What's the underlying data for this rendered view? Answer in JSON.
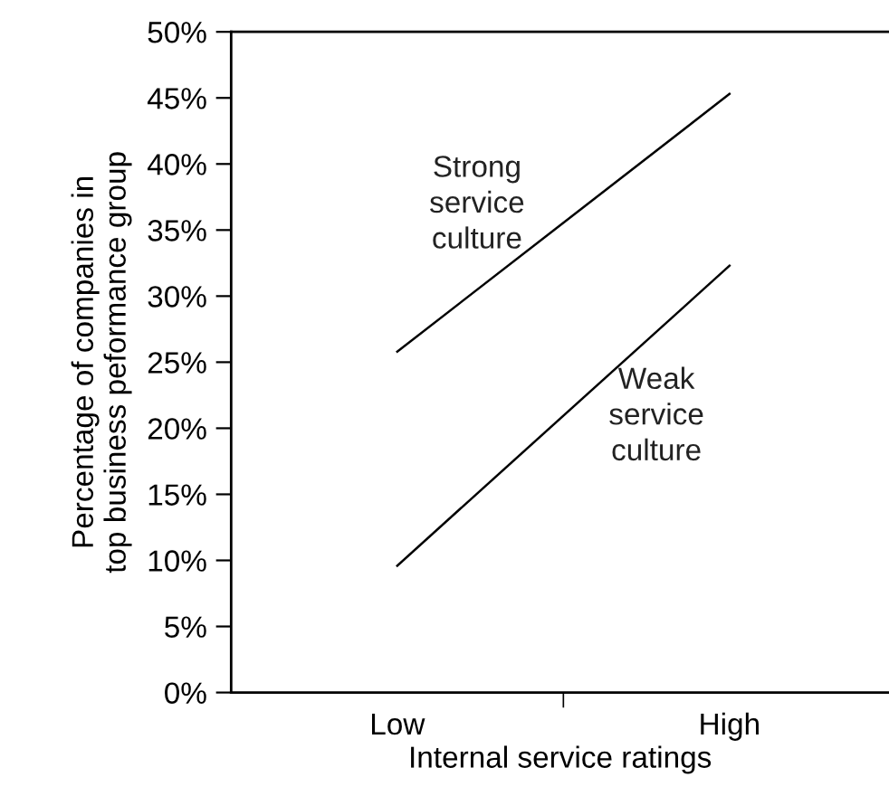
{
  "chart_data": {
    "type": "line",
    "xlabel": "Internal service ratings",
    "ylabel": "Percentage of companies in\ntop business peformance group",
    "categories": [
      "Low",
      "High"
    ],
    "series": [
      {
        "name": "Strong\nservice\nculture",
        "color": "#000000",
        "values": [
          25.8,
          45.3
        ]
      },
      {
        "name": "Weak\nservice\nculture",
        "color": "#000000",
        "values": [
          9.6,
          32.3
        ]
      }
    ],
    "ylim": [
      0,
      50
    ],
    "yticks": [
      {
        "value": 0,
        "label": "0%"
      },
      {
        "value": 5,
        "label": "5%"
      },
      {
        "value": 10,
        "label": "10%"
      },
      {
        "value": 15,
        "label": "15%"
      },
      {
        "value": 20,
        "label": "20%"
      },
      {
        "value": 25,
        "label": "25%"
      },
      {
        "value": 30,
        "label": "30%"
      },
      {
        "value": 35,
        "label": "35%"
      },
      {
        "value": 40,
        "label": "40%"
      },
      {
        "value": 45,
        "label": "45%"
      },
      {
        "value": 50,
        "label": "50%"
      }
    ],
    "grid": false,
    "legend": false,
    "marker": "none",
    "line_style": "solid"
  }
}
